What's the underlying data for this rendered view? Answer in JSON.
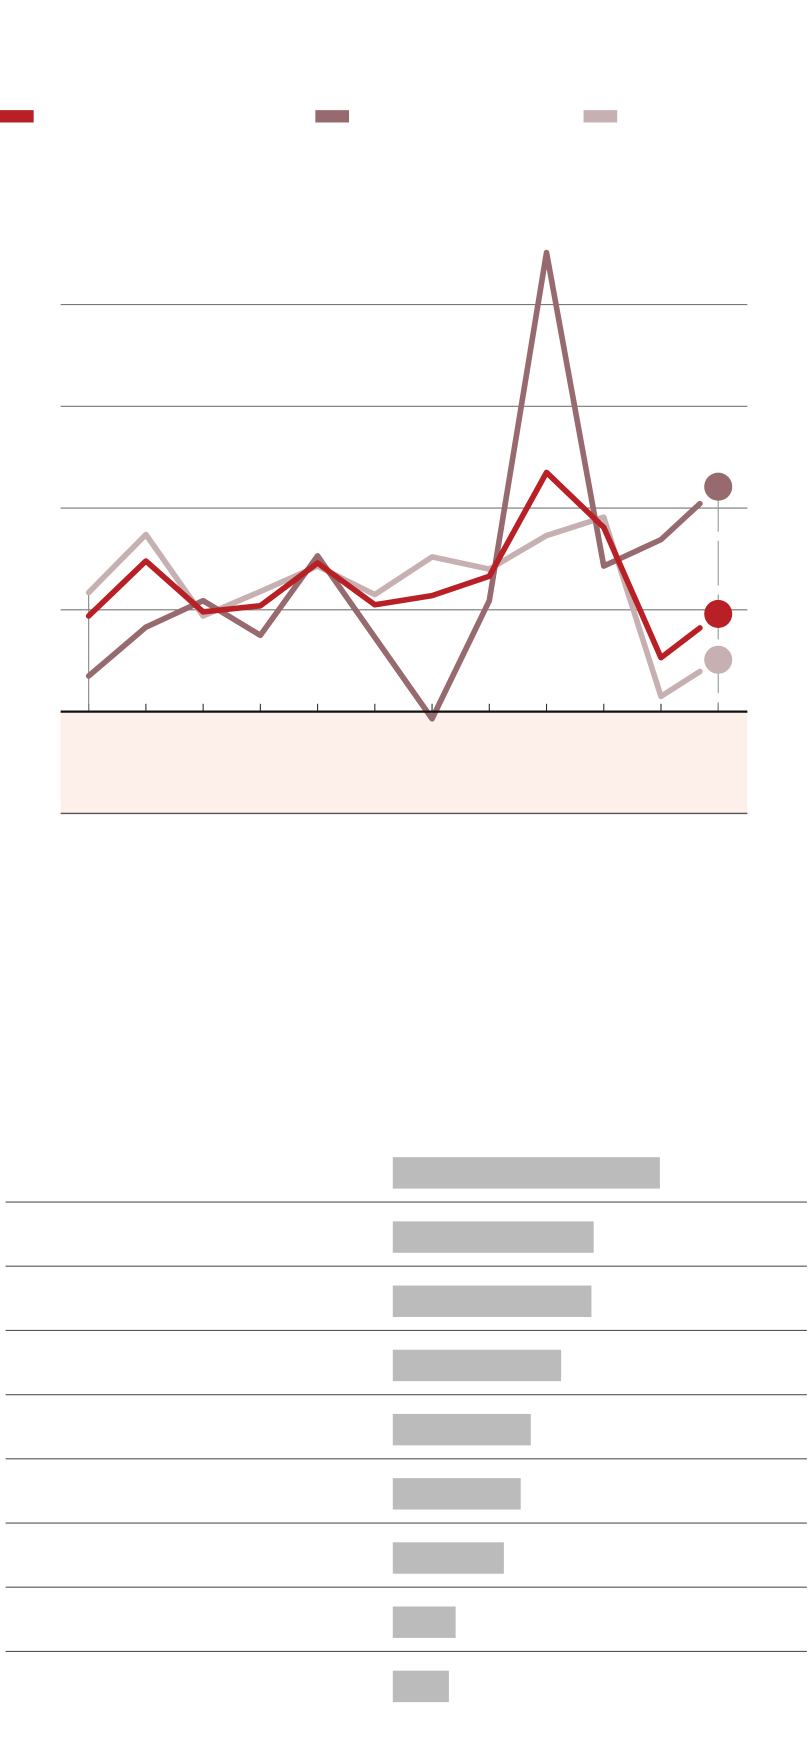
{
  "colors": {
    "series_1": "#b82025",
    "series_2": "#966a6e",
    "series_3": "#c7b0b1",
    "negative_band": "#fdf0eb",
    "bar": "#bbbbbb",
    "grid": "#777777"
  },
  "chart_data": [
    {
      "type": "line",
      "legend": "top",
      "grid": true,
      "ylim": [
        -1,
        4
      ],
      "yticks": [
        0,
        1,
        2,
        3,
        4
      ],
      "x": [
        1,
        2,
        3,
        4,
        5,
        6,
        7,
        8,
        9,
        10,
        11,
        12
      ],
      "series": [
        {
          "color": "#b82025",
          "values": [
            0.94,
            1.48,
            0.98,
            1.04,
            1.46,
            1.05,
            1.14,
            1.33,
            2.35,
            1.81,
            0.53,
            0.96
          ]
        },
        {
          "color": "#966a6e",
          "values": [
            0.35,
            0.83,
            1.09,
            0.75,
            1.53,
            0.73,
            -0.07,
            1.09,
            4.51,
            1.43,
            1.69,
            2.21
          ]
        },
        {
          "color": "#c7b0b1",
          "values": [
            1.17,
            1.74,
            0.94,
            1.18,
            1.43,
            1.15,
            1.52,
            1.4,
            1.73,
            1.91,
            0.15,
            0.51
          ]
        }
      ]
    },
    {
      "type": "bar",
      "orientation": "horizontal",
      "values": [
        238,
        179,
        177,
        150,
        123,
        114,
        99,
        56,
        50
      ]
    }
  ]
}
